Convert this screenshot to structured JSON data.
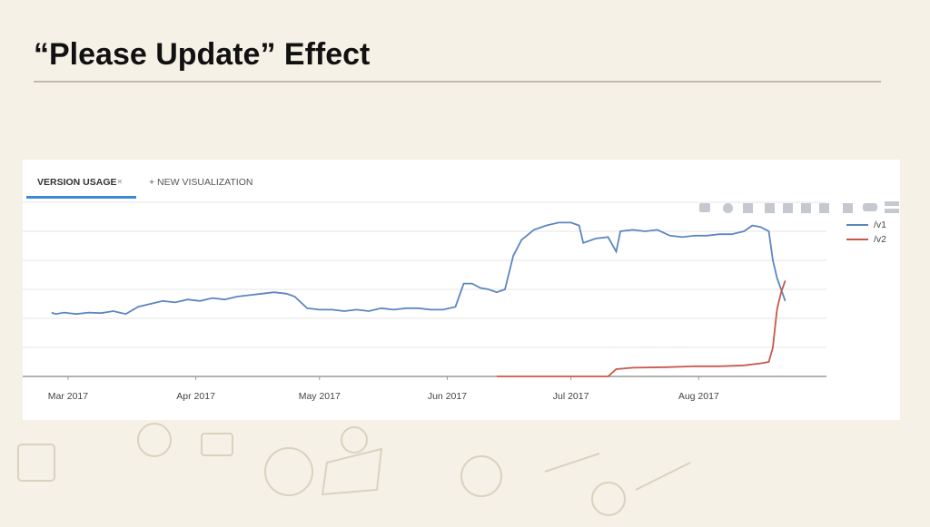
{
  "slide": {
    "title": "“Please Update” Effect"
  },
  "tabs": {
    "active": "VERSION USAGE",
    "close": "×",
    "new": "+ NEW VISUALIZATION"
  },
  "chart_data": {
    "type": "line",
    "xlim": [
      -11,
      184
    ],
    "xticks": [
      {
        "value": 0,
        "label": "Mar 2017"
      },
      {
        "value": 31,
        "label": "Apr 2017"
      },
      {
        "value": 61,
        "label": "May 2017"
      },
      {
        "value": 92,
        "label": "Jun 2017"
      },
      {
        "value": 122,
        "label": "Jul 2017"
      },
      {
        "value": 153,
        "label": "Aug 2017"
      }
    ],
    "ylim": [
      0,
      6
    ],
    "yticks": [
      0,
      1,
      2,
      3,
      4,
      5,
      6
    ],
    "grid": true,
    "legend": "top-right",
    "series": [
      {
        "name": "/v1",
        "color": "#5b87c0",
        "x": [
          -4,
          -3,
          -1,
          2,
          5,
          8,
          11,
          14,
          17,
          20,
          23,
          26,
          29,
          32,
          35,
          38,
          41,
          44,
          47,
          50,
          53,
          55,
          58,
          61,
          64,
          67,
          70,
          73,
          76,
          79,
          82,
          85,
          88,
          91,
          94,
          96,
          98,
          100,
          102,
          104,
          106,
          108,
          110,
          113,
          116,
          119,
          122,
          124,
          125,
          128,
          131,
          133,
          134,
          137,
          140,
          143,
          146,
          149,
          152,
          155,
          158,
          161,
          164,
          166,
          168,
          170,
          171,
          172,
          174
        ],
        "values": [
          2.2,
          2.15,
          2.2,
          2.15,
          2.2,
          2.18,
          2.25,
          2.15,
          2.4,
          2.5,
          2.6,
          2.55,
          2.65,
          2.6,
          2.7,
          2.65,
          2.75,
          2.8,
          2.85,
          2.9,
          2.85,
          2.75,
          2.35,
          2.3,
          2.3,
          2.25,
          2.3,
          2.25,
          2.35,
          2.3,
          2.35,
          2.35,
          2.3,
          2.3,
          2.4,
          3.2,
          3.2,
          3.05,
          3.0,
          2.9,
          3.0,
          4.15,
          4.7,
          5.05,
          5.2,
          5.3,
          5.3,
          5.2,
          4.6,
          4.75,
          4.8,
          4.3,
          5.0,
          5.05,
          5.0,
          5.05,
          4.85,
          4.8,
          4.85,
          4.85,
          4.9,
          4.9,
          5.0,
          5.2,
          5.15,
          5.0,
          4.0,
          3.4,
          2.6
        ]
      },
      {
        "name": "/v2",
        "color": "#c9574a",
        "x": [
          104,
          131,
          133,
          137,
          145,
          152,
          158,
          164,
          168,
          170,
          171,
          172,
          173,
          174
        ],
        "values": [
          0,
          0,
          0.25,
          0.3,
          0.32,
          0.35,
          0.35,
          0.38,
          0.45,
          0.5,
          1.0,
          2.3,
          2.9,
          3.3
        ]
      }
    ]
  }
}
